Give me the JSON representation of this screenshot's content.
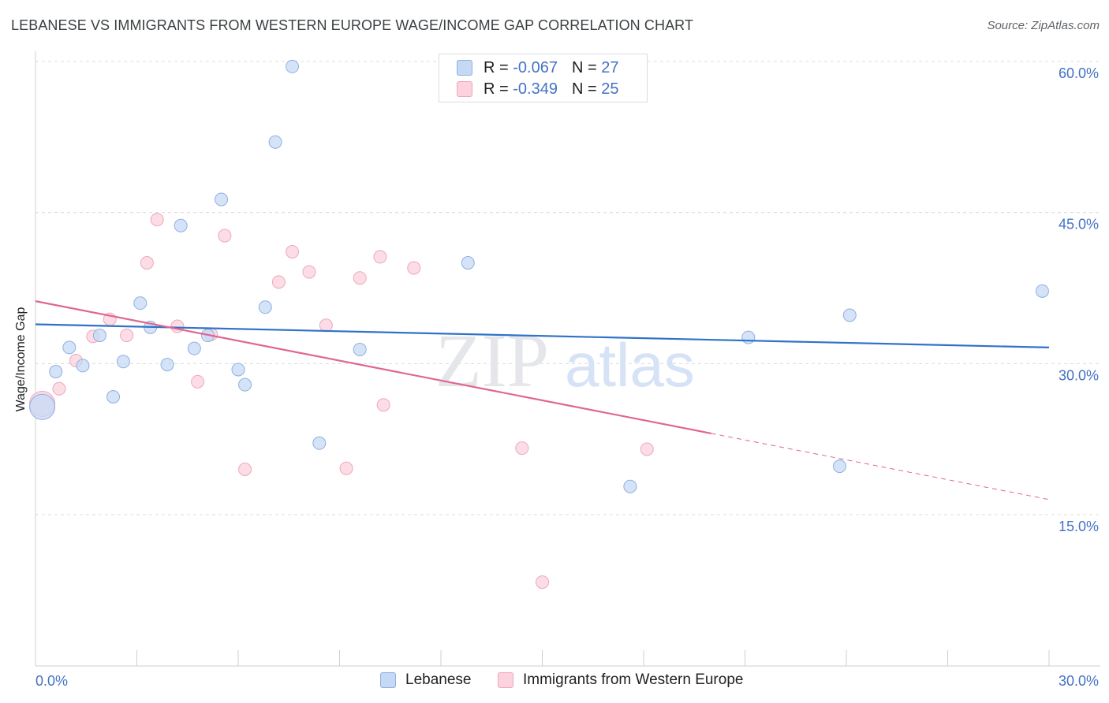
{
  "header": {
    "title": "LEBANESE VS IMMIGRANTS FROM WESTERN EUROPE WAGE/INCOME GAP CORRELATION CHART",
    "source": "Source: ZipAtlas.com"
  },
  "watermark": {
    "zip": "ZIP",
    "atlas": "atlas"
  },
  "legend": {
    "series1": {
      "r_label": "R =",
      "r_value": "-0.067",
      "n_label": "N =",
      "n_value": "27"
    },
    "series2": {
      "r_label": "R =",
      "r_value": "-0.349",
      "n_label": "N =",
      "n_value": "25"
    }
  },
  "colors": {
    "lebanese_fill": "#c5d9f5",
    "lebanese_stroke": "#8fb0e0",
    "lebanese_line": "#2f72c9",
    "western_fill": "#fbd2dd",
    "western_stroke": "#eea7bc",
    "western_line": "#e0668f",
    "tick_label": "#4472c4",
    "grid": "#dcdcdc"
  },
  "chart_data": {
    "type": "scatter",
    "title": "LEBANESE VS IMMIGRANTS FROM WESTERN EUROPE WAGE/INCOME GAP CORRELATION CHART",
    "xlabel": "",
    "ylabel": "Wage/Income Gap",
    "xlim": [
      0,
      30
    ],
    "ylim": [
      0,
      61
    ],
    "x_tick_labels": [
      "0.0%",
      "30.0%"
    ],
    "y_ticks": [
      15,
      30,
      45,
      60
    ],
    "y_tick_labels": [
      "15.0%",
      "30.0%",
      "45.0%",
      "60.0%"
    ],
    "grid": true,
    "legend_position": "top-center",
    "series": [
      {
        "name": "Lebanese",
        "color": "#c5d9f5",
        "points": [
          {
            "x": 0.2,
            "y": 25.7,
            "big": true
          },
          {
            "x": 0.6,
            "y": 29.2
          },
          {
            "x": 1.0,
            "y": 31.6
          },
          {
            "x": 1.4,
            "y": 29.8
          },
          {
            "x": 1.9,
            "y": 32.8
          },
          {
            "x": 2.3,
            "y": 26.7
          },
          {
            "x": 2.6,
            "y": 30.2
          },
          {
            "x": 3.1,
            "y": 36.0
          },
          {
            "x": 3.4,
            "y": 33.6
          },
          {
            "x": 3.9,
            "y": 29.9
          },
          {
            "x": 4.3,
            "y": 43.7
          },
          {
            "x": 4.7,
            "y": 31.5
          },
          {
            "x": 5.1,
            "y": 32.8
          },
          {
            "x": 5.5,
            "y": 46.3
          },
          {
            "x": 6.0,
            "y": 29.4
          },
          {
            "x": 6.2,
            "y": 27.9
          },
          {
            "x": 6.8,
            "y": 35.6
          },
          {
            "x": 7.1,
            "y": 52.0
          },
          {
            "x": 7.6,
            "y": 59.5
          },
          {
            "x": 8.4,
            "y": 22.1
          },
          {
            "x": 9.6,
            "y": 31.4
          },
          {
            "x": 12.8,
            "y": 40.0
          },
          {
            "x": 17.6,
            "y": 17.8
          },
          {
            "x": 21.1,
            "y": 32.6
          },
          {
            "x": 23.8,
            "y": 19.8
          },
          {
            "x": 24.1,
            "y": 34.8
          },
          {
            "x": 29.8,
            "y": 37.2
          }
        ]
      },
      {
        "name": "Immigrants from Western Europe",
        "color": "#fbd2dd",
        "points": [
          {
            "x": 0.2,
            "y": 26.0,
            "big": true
          },
          {
            "x": 0.7,
            "y": 27.5
          },
          {
            "x": 1.2,
            "y": 30.3
          },
          {
            "x": 1.7,
            "y": 32.7
          },
          {
            "x": 2.2,
            "y": 34.4
          },
          {
            "x": 2.7,
            "y": 32.8
          },
          {
            "x": 3.3,
            "y": 40.0
          },
          {
            "x": 3.6,
            "y": 44.3
          },
          {
            "x": 4.2,
            "y": 33.7
          },
          {
            "x": 4.8,
            "y": 28.2
          },
          {
            "x": 5.2,
            "y": 32.9
          },
          {
            "x": 5.6,
            "y": 42.7
          },
          {
            "x": 6.2,
            "y": 19.5
          },
          {
            "x": 7.2,
            "y": 38.1
          },
          {
            "x": 7.6,
            "y": 41.1
          },
          {
            "x": 8.1,
            "y": 39.1
          },
          {
            "x": 8.6,
            "y": 33.8
          },
          {
            "x": 9.2,
            "y": 19.6
          },
          {
            "x": 9.6,
            "y": 38.5
          },
          {
            "x": 10.2,
            "y": 40.6
          },
          {
            "x": 10.3,
            "y": 25.9
          },
          {
            "x": 11.2,
            "y": 39.5
          },
          {
            "x": 14.4,
            "y": 21.6
          },
          {
            "x": 15.0,
            "y": 8.3
          },
          {
            "x": 18.1,
            "y": 21.5
          }
        ]
      }
    ],
    "trendlines": [
      {
        "series": "Lebanese",
        "x0": 0,
        "y0": 33.9,
        "x1": 30,
        "y1": 31.6,
        "dash_from_x": null
      },
      {
        "series": "Immigrants from Western Europe",
        "x0": 0,
        "y0": 36.2,
        "x1": 30,
        "y1": 16.5,
        "dash_from_x": 20.0
      }
    ]
  },
  "bottom_legend": {
    "item1": "Lebanese",
    "item2": "Immigrants from Western Europe"
  }
}
